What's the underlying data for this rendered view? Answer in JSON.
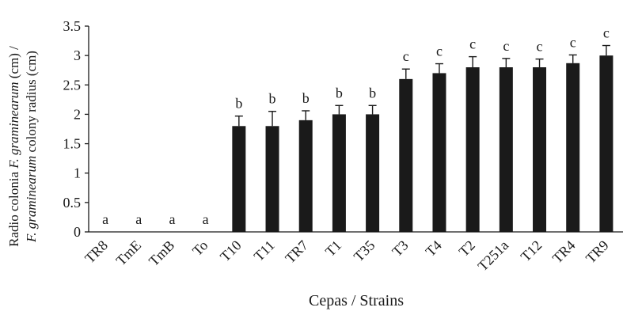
{
  "chart_data": {
    "type": "bar",
    "title": "",
    "xlabel": "Cepas / Strains",
    "ylabel_parts": [
      {
        "line": 1,
        "text": "Radio colonia ",
        "italic": false
      },
      {
        "line": 1,
        "text": "F. graminearum",
        "italic": true
      },
      {
        "line": 1,
        "text": " (cm) /",
        "italic": false
      },
      {
        "line": 2,
        "text": "F. graminearum",
        "italic": true
      },
      {
        "line": 2,
        "text": " colony radius (cm)",
        "italic": false
      }
    ],
    "ylim": [
      0,
      3.5
    ],
    "yticks": [
      "0",
      "0.5",
      "1",
      "1.5",
      "2",
      "2.5",
      "3",
      "3.5"
    ],
    "grid": false,
    "categories": [
      "TR8",
      "TmE",
      "TmB",
      "To",
      "T10",
      "T11",
      "TR7",
      "T1",
      "T35",
      "T3",
      "T4",
      "T2",
      "T251a",
      "T12",
      "TR4",
      "TR9"
    ],
    "values": [
      0,
      0,
      0,
      0,
      1.8,
      1.8,
      1.9,
      2.0,
      2.0,
      2.6,
      2.7,
      2.8,
      2.8,
      2.8,
      2.87,
      3.0
    ],
    "errors": [
      0,
      0,
      0,
      0,
      0.17,
      0.25,
      0.16,
      0.15,
      0.15,
      0.17,
      0.16,
      0.18,
      0.15,
      0.14,
      0.14,
      0.17
    ],
    "letters": [
      "a",
      "a",
      "a",
      "a",
      "b",
      "b",
      "b",
      "b",
      "b",
      "c",
      "c",
      "c",
      "c",
      "c",
      "c",
      "c"
    ],
    "bar_color": "#1a1a1a"
  }
}
